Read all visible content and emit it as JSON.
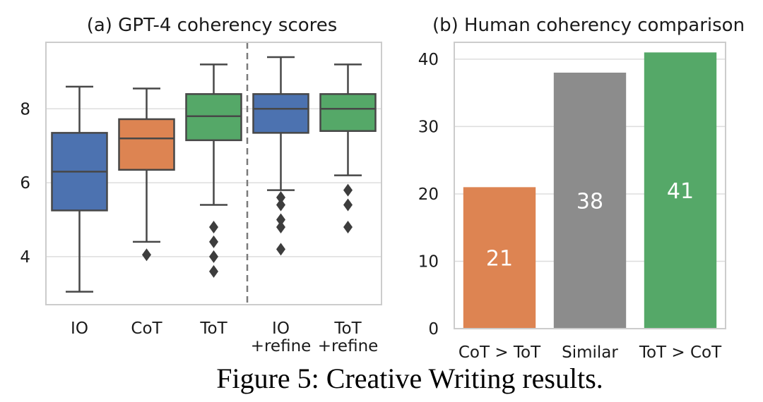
{
  "caption": "Figure 5: Creative Writing results.",
  "chart_data": [
    {
      "type": "box",
      "title": "(a) GPT-4 coherency scores",
      "xlabel": "",
      "ylabel": "",
      "ylim": [
        2.7,
        9.8
      ],
      "yticks": [
        4,
        6,
        8
      ],
      "grid": true,
      "separator_after_index": 2,
      "boxes": [
        {
          "label_lines": [
            "IO"
          ],
          "color": "#4c72b0",
          "whisker_low": 3.05,
          "q1": 5.25,
          "median": 6.3,
          "q3": 7.35,
          "whisker_high": 8.6,
          "outliers": []
        },
        {
          "label_lines": [
            "CoT"
          ],
          "color": "#dd8452",
          "whisker_low": 4.4,
          "q1": 6.35,
          "median": 7.2,
          "q3": 7.72,
          "whisker_high": 8.55,
          "outliers": [
            4.05
          ]
        },
        {
          "label_lines": [
            "ToT"
          ],
          "color": "#55a868",
          "whisker_low": 5.4,
          "q1": 7.15,
          "median": 7.8,
          "q3": 8.4,
          "whisker_high": 9.2,
          "outliers": [
            4.8,
            4.4,
            4.0,
            3.6
          ]
        },
        {
          "label_lines": [
            "IO",
            "+refine"
          ],
          "color": "#4c72b0",
          "whisker_low": 5.8,
          "q1": 7.35,
          "median": 8.0,
          "q3": 8.4,
          "whisker_high": 9.4,
          "outliers": [
            5.6,
            5.4,
            5.0,
            4.8,
            4.2
          ]
        },
        {
          "label_lines": [
            "ToT",
            "+refine"
          ],
          "color": "#55a868",
          "whisker_low": 6.2,
          "q1": 7.4,
          "median": 8.0,
          "q3": 8.4,
          "whisker_high": 9.2,
          "outliers": [
            5.8,
            5.4,
            4.8
          ]
        }
      ]
    },
    {
      "type": "bar",
      "title": "(b) Human coherency comparison",
      "xlabel": "",
      "ylabel": "",
      "ylim": [
        0,
        42.5
      ],
      "yticks": [
        0,
        10,
        20,
        30,
        40
      ],
      "grid": true,
      "categories": [
        "CoT > ToT",
        "Similar",
        "ToT > CoT"
      ],
      "values": [
        21,
        38,
        41
      ],
      "colors": [
        "#dd8452",
        "#8c8c8c",
        "#55a868"
      ]
    }
  ]
}
